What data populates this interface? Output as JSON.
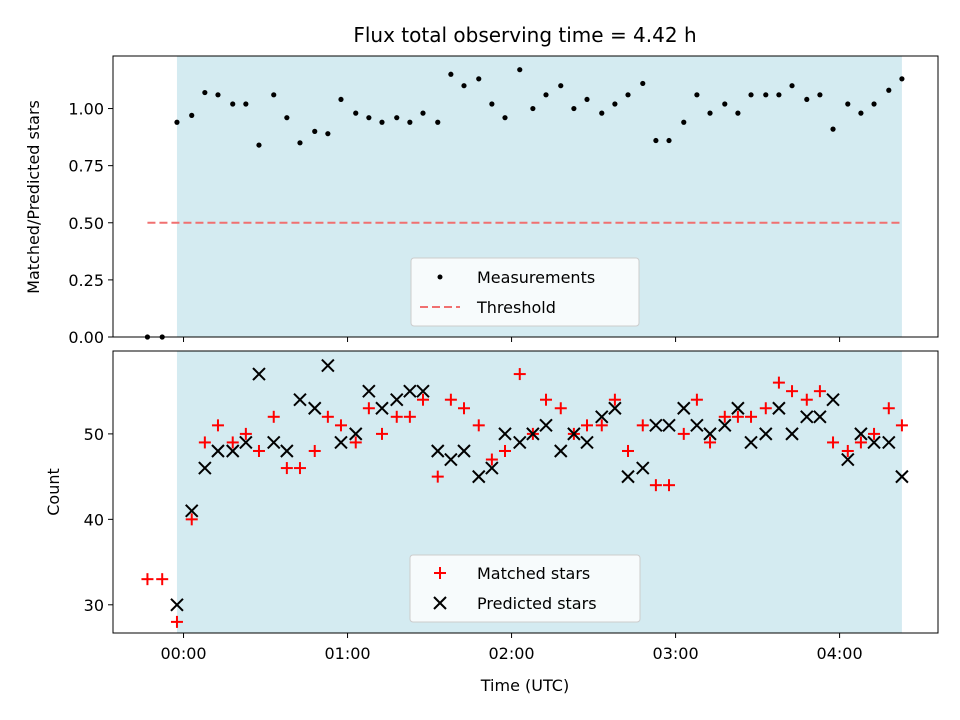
{
  "chart_data": [
    {
      "type": "scatter",
      "panel": "top",
      "title": "Flux total observing time = 4.42 h",
      "xlabel": "",
      "ylabel": "Matched/Predicted stars",
      "ylim": [
        0.0,
        1.23
      ],
      "yticks": [
        0.0,
        0.25,
        0.5,
        0.75,
        1.0
      ],
      "ytick_labels": [
        "0.00",
        "0.25",
        "0.50",
        "0.75",
        "1.00"
      ],
      "shaded_span_hours": [
        -0.04,
        4.38
      ],
      "series": [
        {
          "name": "Measurements",
          "color": "#000000",
          "marker": "dot",
          "x_hours": [
            -0.22,
            -0.13,
            -0.04,
            0.05,
            0.13,
            0.21,
            0.3,
            0.38,
            0.46,
            0.55,
            0.63,
            0.71,
            0.8,
            0.88,
            0.96,
            1.05,
            1.13,
            1.21,
            1.3,
            1.38,
            1.46,
            1.55,
            1.63,
            1.71,
            1.8,
            1.88,
            1.96,
            2.05,
            2.13,
            2.21,
            2.3,
            2.38,
            2.46,
            2.55,
            2.63,
            2.71,
            2.8,
            2.88,
            2.96,
            3.05,
            3.13,
            3.21,
            3.3,
            3.38,
            3.46,
            3.55,
            3.63,
            3.71,
            3.8,
            3.88,
            3.96,
            4.05,
            4.13,
            4.21,
            4.3,
            4.38
          ],
          "values": [
            0.0,
            0.0,
            0.94,
            0.97,
            1.07,
            1.06,
            1.02,
            1.02,
            0.84,
            1.06,
            0.96,
            0.85,
            0.9,
            0.89,
            1.04,
            0.98,
            0.96,
            0.94,
            0.96,
            0.94,
            0.98,
            0.94,
            1.15,
            1.1,
            1.13,
            1.02,
            0.96,
            1.17,
            1.0,
            1.06,
            1.1,
            1.0,
            1.04,
            0.98,
            1.02,
            1.06,
            1.11,
            0.86,
            0.86,
            0.94,
            1.06,
            0.98,
            1.02,
            0.98,
            1.06,
            1.06,
            1.06,
            1.1,
            1.04,
            1.06,
            0.91,
            1.02,
            0.98,
            1.02,
            1.08,
            1.13
          ]
        },
        {
          "name": "Threshold",
          "color": "#f07070",
          "style": "dashed",
          "x_hours": [
            -0.22,
            4.38
          ],
          "values": [
            0.5,
            0.5
          ]
        }
      ],
      "legend": [
        "Measurements",
        "Threshold"
      ],
      "legend_position": "lower-center"
    },
    {
      "type": "scatter",
      "panel": "bottom",
      "xlabel": "Time (UTC)",
      "ylabel": "Count",
      "ylim": [
        26.7,
        59.7
      ],
      "yticks": [
        30,
        40,
        50
      ],
      "ytick_labels": [
        "30",
        "40",
        "50"
      ],
      "xlim_hours": [
        -0.43,
        4.6
      ],
      "xticks_hours": [
        0,
        1,
        2,
        3,
        4
      ],
      "xtick_labels": [
        "00:00",
        "01:00",
        "02:00",
        "03:00",
        "04:00"
      ],
      "shaded_span_hours": [
        -0.04,
        4.38
      ],
      "series": [
        {
          "name": "Matched stars",
          "color": "#ff0000",
          "marker": "plus",
          "x_hours": [
            -0.22,
            -0.13,
            -0.04,
            0.05,
            0.13,
            0.21,
            0.3,
            0.38,
            0.46,
            0.55,
            0.63,
            0.71,
            0.8,
            0.88,
            0.96,
            1.05,
            1.13,
            1.21,
            1.3,
            1.38,
            1.46,
            1.55,
            1.63,
            1.71,
            1.8,
            1.88,
            1.96,
            2.05,
            2.13,
            2.21,
            2.3,
            2.38,
            2.46,
            2.55,
            2.63,
            2.71,
            2.8,
            2.88,
            2.96,
            3.05,
            3.13,
            3.21,
            3.3,
            3.38,
            3.46,
            3.55,
            3.63,
            3.71,
            3.8,
            3.88,
            3.96,
            4.05,
            4.13,
            4.21,
            4.3,
            4.38
          ],
          "values": [
            33,
            33,
            28,
            40,
            49,
            51,
            49,
            50,
            48,
            52,
            46,
            46,
            48,
            52,
            51,
            49,
            53,
            50,
            52,
            52,
            54,
            45,
            54,
            53,
            51,
            47,
            48,
            57,
            50,
            54,
            53,
            50,
            51,
            51,
            54,
            48,
            51,
            44,
            44,
            50,
            54,
            49,
            52,
            52,
            52,
            53,
            56,
            55,
            54,
            55,
            49,
            48,
            49,
            50,
            53,
            51
          ]
        },
        {
          "name": "Predicted stars",
          "color": "#000000",
          "marker": "x",
          "x_hours": [
            -0.04,
            0.05,
            0.13,
            0.21,
            0.3,
            0.38,
            0.46,
            0.55,
            0.63,
            0.71,
            0.8,
            0.88,
            0.96,
            1.05,
            1.13,
            1.21,
            1.3,
            1.38,
            1.46,
            1.55,
            1.63,
            1.71,
            1.8,
            1.88,
            1.96,
            2.05,
            2.13,
            2.21,
            2.3,
            2.38,
            2.46,
            2.55,
            2.63,
            2.71,
            2.8,
            2.88,
            2.96,
            3.05,
            3.13,
            3.21,
            3.3,
            3.38,
            3.46,
            3.55,
            3.63,
            3.71,
            3.8,
            3.88,
            3.96,
            4.05,
            4.13,
            4.21,
            4.3,
            4.38
          ],
          "values": [
            30,
            41,
            46,
            48,
            48,
            49,
            57,
            49,
            48,
            54,
            53,
            58,
            49,
            50,
            55,
            53,
            54,
            55,
            55,
            48,
            47,
            48,
            45,
            46,
            50,
            49,
            50,
            51,
            48,
            50,
            49,
            52,
            53,
            45,
            46,
            51,
            51,
            53,
            51,
            50,
            51,
            53,
            49,
            50,
            53,
            50,
            52,
            52,
            54,
            47,
            50,
            49,
            49,
            45
          ]
        }
      ],
      "legend": [
        "Matched stars",
        "Predicted stars"
      ],
      "legend_position": "lower-center"
    }
  ],
  "colors": {
    "shade": "#d4ebf1",
    "threshold": "#f07070",
    "matched": "#ff0000",
    "predicted": "#000000"
  }
}
